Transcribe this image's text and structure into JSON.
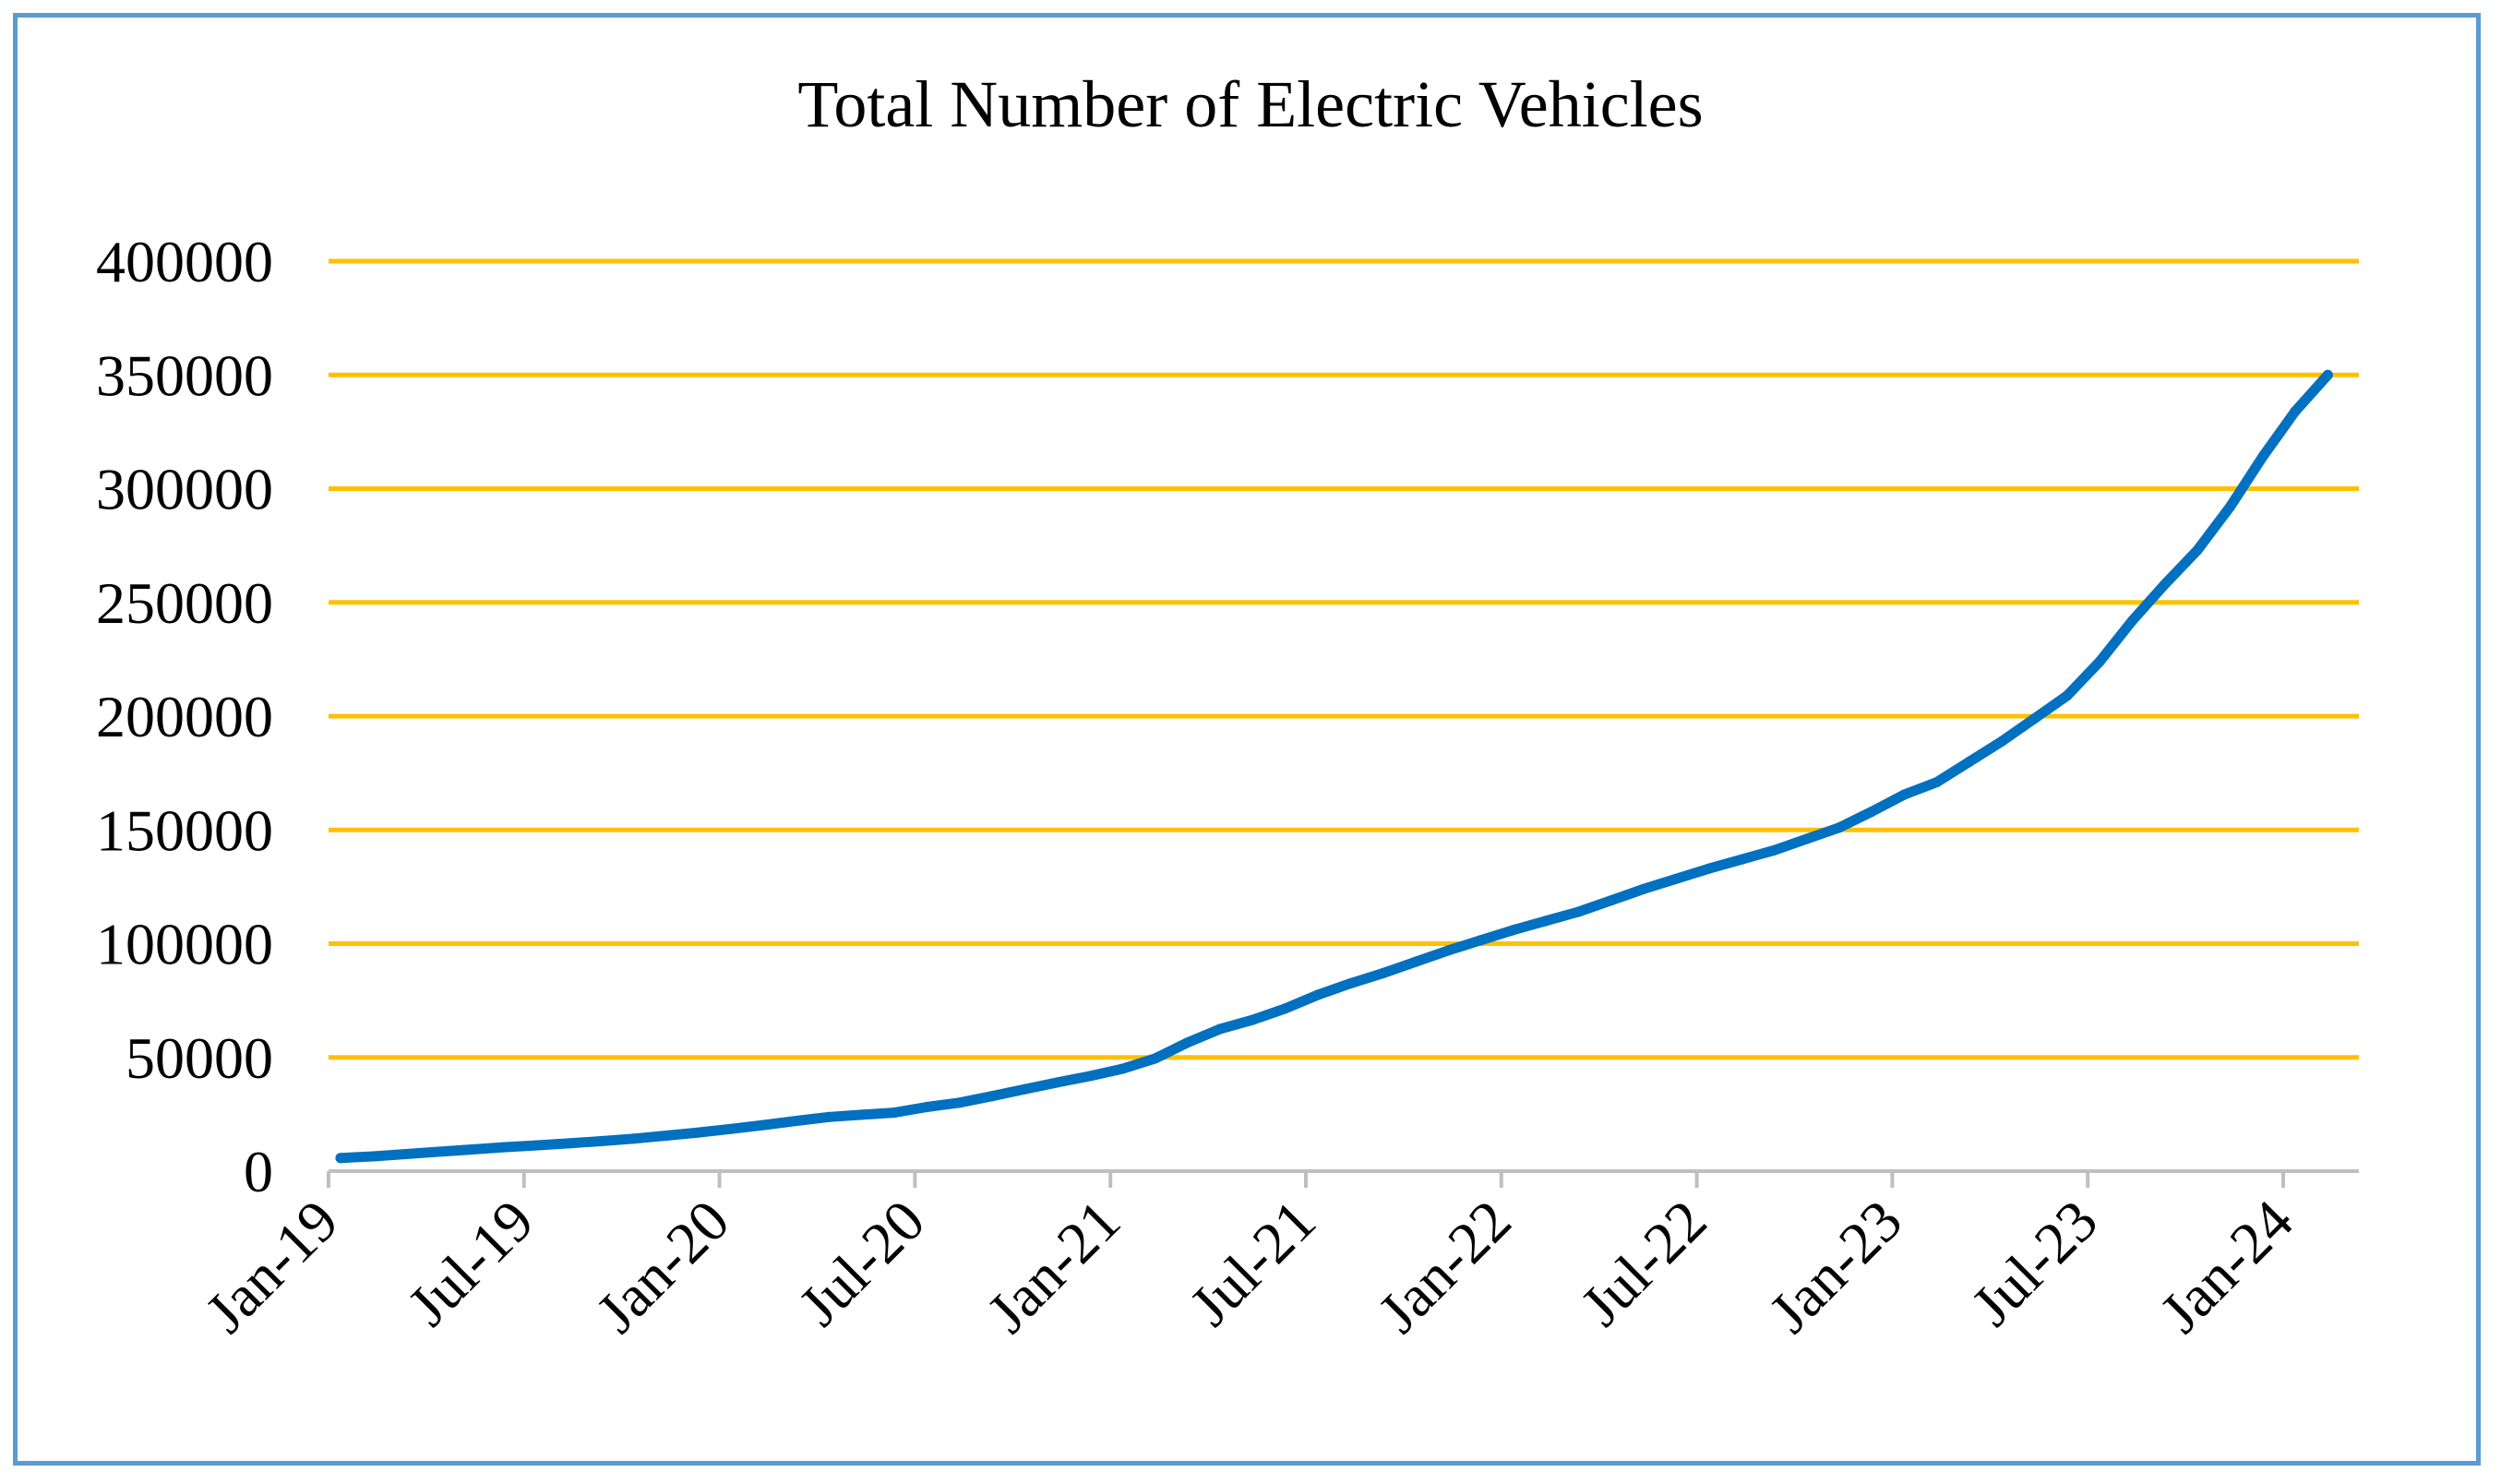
{
  "chart_data": {
    "type": "line",
    "title": "Total Number of Electric Vehicles",
    "xlabel": "",
    "ylabel": "",
    "ylim": [
      0,
      400000
    ],
    "yticks": [
      0,
      50000,
      100000,
      150000,
      200000,
      250000,
      300000,
      350000,
      400000
    ],
    "ytick_labels": [
      "0",
      "50000",
      "100000",
      "150000",
      "200000",
      "250000",
      "300000",
      "350000",
      "400000"
    ],
    "xtick_labels": [
      "Jan-19",
      "Jul-19",
      "Jan-20",
      "Jul-20",
      "Jan-21",
      "Jul-21",
      "Jan-22",
      "Jul-22",
      "Jan-23",
      "Jul-23",
      "Jan-24"
    ],
    "grid": true,
    "colors": {
      "line": "#0070c0",
      "grid": "#ffc000",
      "axis": "#bfbfbf",
      "frame": "#5b9bd5"
    },
    "series": [
      {
        "name": "Total Number of Electric Vehicles",
        "x": [
          "Jan-19",
          "Feb-19",
          "Mar-19",
          "Apr-19",
          "May-19",
          "Jun-19",
          "Jul-19",
          "Aug-19",
          "Sep-19",
          "Oct-19",
          "Nov-19",
          "Dec-19",
          "Jan-20",
          "Feb-20",
          "Mar-20",
          "Apr-20",
          "May-20",
          "Jun-20",
          "Jul-20",
          "Aug-20",
          "Sep-20",
          "Oct-20",
          "Nov-20",
          "Dec-20",
          "Jan-21",
          "Feb-21",
          "Mar-21",
          "Apr-21",
          "May-21",
          "Jun-21",
          "Jul-21",
          "Aug-21",
          "Sep-21",
          "Oct-21",
          "Nov-21",
          "Dec-21",
          "Jan-22",
          "Feb-22",
          "Mar-22",
          "Apr-22",
          "May-22",
          "Jun-22",
          "Jul-22",
          "Aug-22",
          "Sep-22",
          "Oct-22",
          "Nov-22",
          "Dec-22",
          "Jan-23",
          "Feb-23",
          "Mar-23",
          "Apr-23",
          "May-23",
          "Jun-23",
          "Jul-23",
          "Aug-23",
          "Sep-23",
          "Oct-23",
          "Nov-23",
          "Dec-23",
          "Jan-24",
          "Feb-24"
        ],
        "values": [
          5800,
          6500,
          7500,
          8500,
          9500,
          10500,
          11300,
          12200,
          13200,
          14300,
          15600,
          17000,
          18600,
          20300,
          22100,
          23800,
          24800,
          25700,
          28200,
          30100,
          33000,
          36000,
          39000,
          41800,
          45000,
          49500,
          56500,
          62500,
          66500,
          71500,
          77500,
          82500,
          87000,
          92000,
          97000,
          101500,
          106000,
          110000,
          114000,
          119000,
          124000,
          128500,
          133000,
          137000,
          141000,
          146000,
          151000,
          158000,
          165500,
          171000,
          180000,
          189000,
          199000,
          209000,
          224000,
          242000,
          258000,
          273000,
          292000,
          314000,
          334000,
          350000
        ]
      }
    ]
  }
}
